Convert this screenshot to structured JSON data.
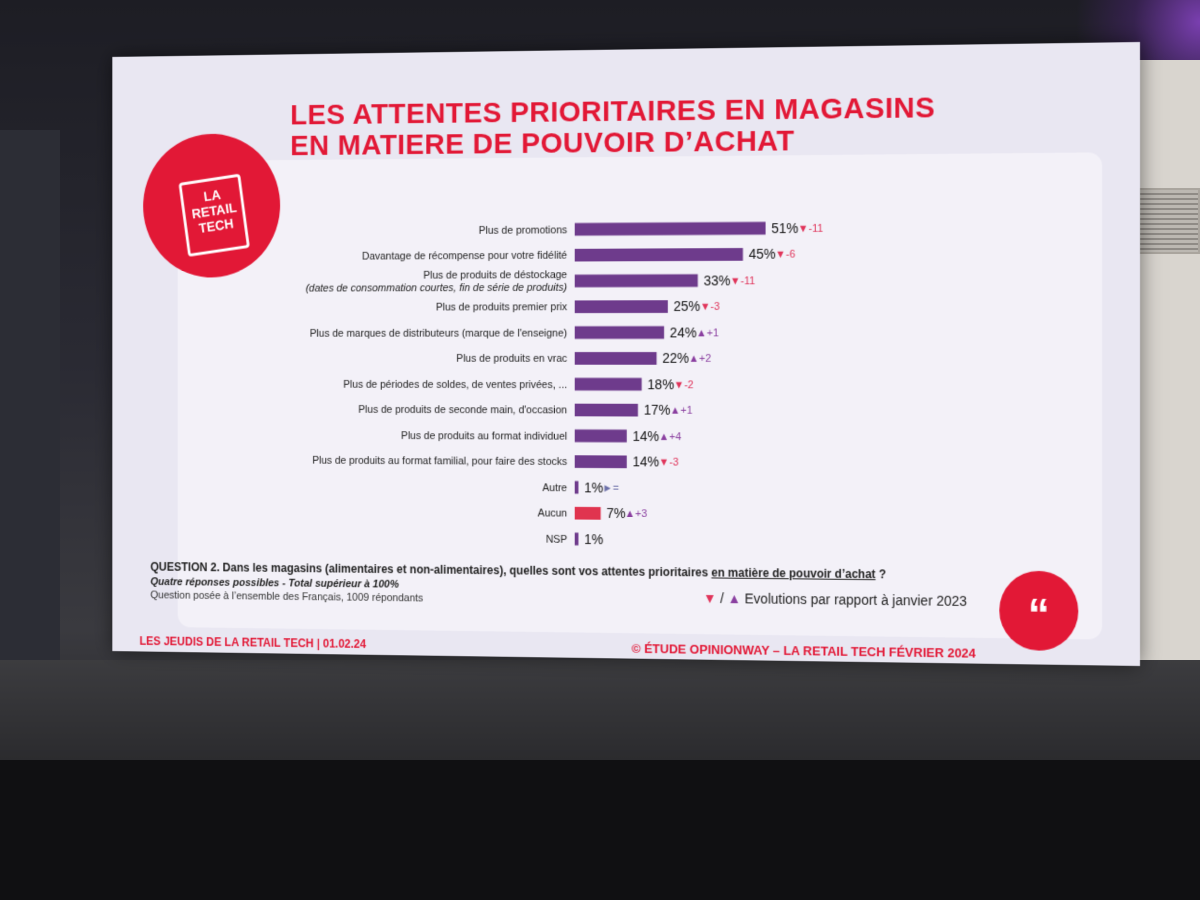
{
  "slide": {
    "title_line1": "LES ATTENTES PRIORITAIRES EN MAGASINS",
    "title_line2": "EN MATIERE DE POUVOIR D’ACHAT",
    "logo_text": "LA RETAIL TECH",
    "question_prefix": "QUESTION 2. Dans les magasins (alimentaires et non-alimentaires), quelles sont vos attentes prioritaires ",
    "question_underlined": "en matière de pouvoir d’achat",
    "question_suffix": " ?",
    "note_responses": "Quatre réponses possibles - Total supérieur à 100%",
    "note_sample": "Question posée à l’ensemble des Français, 1009 répondants",
    "legend_down": "▼",
    "legend_sep": " / ",
    "legend_up": "▲",
    "legend_text": " Evolutions par rapport à janvier 2023",
    "footer_left": "LES JEUDIS DE LA RETAIL TECH | 01.02.24",
    "footer_right": "© ÉTUDE OPINIONWAY – LA RETAIL TECH FÉVRIER 2024",
    "quote_glyph": "“"
  },
  "colors": {
    "brand_red": "#e21836",
    "bar_purple": "#6e3b8c",
    "bar_red": "#e0344f",
    "down_arrow": "#e0345a",
    "up_arrow": "#8a3fa0"
  },
  "chart_data": {
    "type": "bar",
    "orientation": "horizontal",
    "title": "LES ATTENTES PRIORITAIRES EN MAGASINS EN MATIERE DE POUVOIR D’ACHAT",
    "xlim": [
      0,
      51
    ],
    "categories": [
      {
        "label": "Plus de promotions",
        "sub": ""
      },
      {
        "label": "Davantage de récompense pour votre fidélité",
        "sub": ""
      },
      {
        "label": "Plus de produits de déstockage",
        "sub": "(dates de consommation courtes, fin de série de produits)"
      },
      {
        "label": "Plus de produits premier prix",
        "sub": ""
      },
      {
        "label": "Plus de marques de distributeurs (marque de l'enseigne)",
        "sub": ""
      },
      {
        "label": "Plus de produits en vrac",
        "sub": ""
      },
      {
        "label": "Plus de périodes de soldes, de ventes privées, ...",
        "sub": ""
      },
      {
        "label": "Plus de produits de seconde main, d'occasion",
        "sub": ""
      },
      {
        "label": "Plus de produits au format individuel",
        "sub": ""
      },
      {
        "label": "Plus de produits au format familial, pour faire des stocks",
        "sub": ""
      },
      {
        "label": "Autre",
        "sub": ""
      },
      {
        "label": "Aucun",
        "sub": ""
      },
      {
        "label": "NSP",
        "sub": ""
      }
    ],
    "values": [
      51,
      45,
      33,
      25,
      24,
      22,
      18,
      17,
      14,
      14,
      1,
      7,
      1
    ],
    "value_labels": [
      "51%",
      "45%",
      "33%",
      "25%",
      "24%",
      "22%",
      "18%",
      "17%",
      "14%",
      "14%",
      "1%",
      "7%",
      "1%"
    ],
    "evolutions": [
      {
        "dir": "down",
        "text": "-11"
      },
      {
        "dir": "down",
        "text": "-6"
      },
      {
        "dir": "down",
        "text": "-11"
      },
      {
        "dir": "down",
        "text": "-3"
      },
      {
        "dir": "up",
        "text": "+1"
      },
      {
        "dir": "up",
        "text": "+2"
      },
      {
        "dir": "down",
        "text": "-2"
      },
      {
        "dir": "up",
        "text": "+1"
      },
      {
        "dir": "up",
        "text": "+4"
      },
      {
        "dir": "down",
        "text": "-3"
      },
      {
        "dir": "same",
        "text": "="
      },
      {
        "dir": "up",
        "text": "+3"
      },
      {
        "dir": "none",
        "text": ""
      }
    ],
    "highlight_index": 11
  }
}
